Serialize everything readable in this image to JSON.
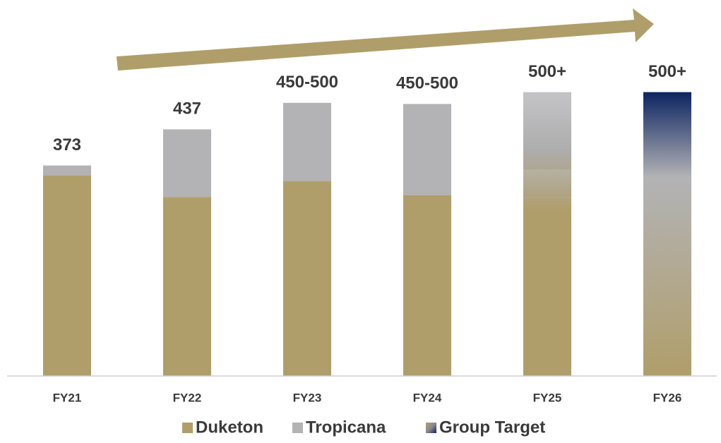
{
  "chart_data": {
    "type": "stacked_bar",
    "categories": [
      "FY21",
      "FY22",
      "FY23",
      "FY24",
      "FY25",
      "FY26"
    ],
    "series": [
      {
        "name": "Duketon",
        "color": "#b09e6a",
        "values": [
          355,
          317,
          345,
          320,
          316,
          null
        ]
      },
      {
        "name": "Tropicana",
        "color": "#b3b2b4",
        "values": [
          18,
          120,
          139,
          162,
          187,
          null
        ]
      },
      {
        "name": "Group Target",
        "color": "#0c2461",
        "values": [
          null,
          null,
          null,
          null,
          null,
          503
        ]
      }
    ],
    "total_labels": [
      "373",
      "437",
      "450-500",
      "450-500",
      "500+",
      "500+"
    ],
    "legend": "bottom"
  }
}
